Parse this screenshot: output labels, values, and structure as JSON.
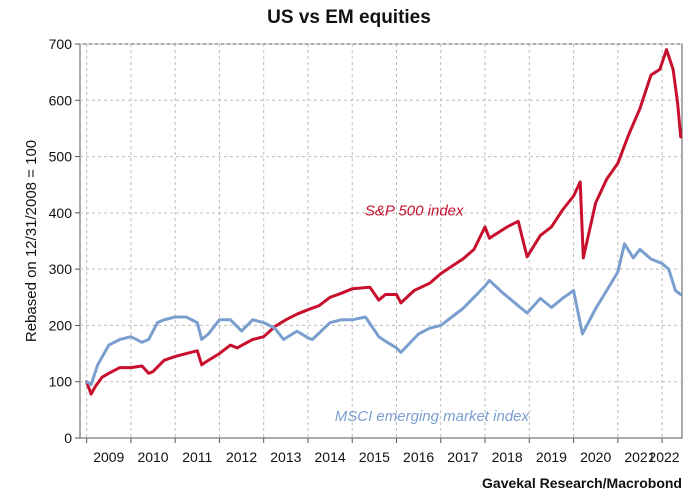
{
  "chart_data": {
    "type": "line",
    "title": "US vs EM equities",
    "ylabel": "Rebased on 12/31/2008 = 100",
    "xlabel": "",
    "source": "Gavekal Research/Macrobond",
    "ylim": [
      0,
      700
    ],
    "xlim": [
      2008.85,
      2022.45
    ],
    "yticks": [
      0,
      100,
      200,
      300,
      400,
      500,
      600,
      700
    ],
    "xtick_labels": [
      "2009",
      "2010",
      "2011",
      "2012",
      "2013",
      "2014",
      "2015",
      "2016",
      "2017",
      "2018",
      "2019",
      "2020",
      "2021",
      "2022"
    ],
    "grid": true,
    "series": [
      {
        "name": "S&P 500 index",
        "color": "#c8102e",
        "x": [
          2009.0,
          2009.1,
          2009.2,
          2009.35,
          2009.5,
          2009.75,
          2010.0,
          2010.25,
          2010.4,
          2010.5,
          2010.75,
          2011.0,
          2011.25,
          2011.5,
          2011.6,
          2011.75,
          2012.0,
          2012.25,
          2012.4,
          2012.75,
          2013.0,
          2013.25,
          2013.5,
          2013.75,
          2014.0,
          2014.25,
          2014.5,
          2014.75,
          2015.0,
          2015.4,
          2015.6,
          2015.75,
          2016.0,
          2016.1,
          2016.4,
          2016.75,
          2017.0,
          2017.25,
          2017.5,
          2017.75,
          2018.0,
          2018.1,
          2018.5,
          2018.75,
          2018.95,
          2019.25,
          2019.5,
          2019.75,
          2020.0,
          2020.15,
          2020.22,
          2020.5,
          2020.75,
          2021.0,
          2021.25,
          2021.5,
          2021.75,
          2021.95,
          2022.1,
          2022.25,
          2022.35,
          2022.42
        ],
        "values": [
          100,
          78,
          92,
          108,
          115,
          125,
          125,
          128,
          115,
          118,
          138,
          145,
          150,
          155,
          130,
          138,
          150,
          165,
          160,
          175,
          180,
          198,
          210,
          220,
          228,
          235,
          250,
          257,
          265,
          268,
          245,
          255,
          255,
          240,
          262,
          275,
          292,
          305,
          318,
          335,
          375,
          355,
          375,
          385,
          322,
          360,
          375,
          405,
          430,
          455,
          320,
          418,
          460,
          488,
          540,
          585,
          645,
          655,
          690,
          655,
          595,
          535
        ]
      },
      {
        "name": "MSCI emerging market index",
        "color": "#7a9fcf",
        "x": [
          2009.0,
          2009.1,
          2009.25,
          2009.5,
          2009.75,
          2010.0,
          2010.25,
          2010.4,
          2010.6,
          2010.75,
          2011.0,
          2011.25,
          2011.5,
          2011.6,
          2011.75,
          2012.0,
          2012.25,
          2012.5,
          2012.75,
          2013.0,
          2013.25,
          2013.45,
          2013.75,
          2014.0,
          2014.1,
          2014.5,
          2014.75,
          2015.0,
          2015.3,
          2015.6,
          2015.75,
          2016.0,
          2016.1,
          2016.5,
          2016.75,
          2017.0,
          2017.25,
          2017.5,
          2017.75,
          2018.0,
          2018.1,
          2018.4,
          2018.75,
          2018.95,
          2019.25,
          2019.5,
          2019.75,
          2020.0,
          2020.2,
          2020.5,
          2020.75,
          2021.0,
          2021.15,
          2021.35,
          2021.5,
          2021.75,
          2022.0,
          2022.15,
          2022.3,
          2022.42
        ],
        "values": [
          100,
          95,
          130,
          165,
          175,
          180,
          170,
          175,
          205,
          210,
          215,
          215,
          205,
          175,
          185,
          210,
          210,
          190,
          210,
          205,
          195,
          175,
          190,
          178,
          175,
          205,
          210,
          210,
          215,
          180,
          172,
          160,
          152,
          185,
          195,
          200,
          215,
          230,
          250,
          270,
          280,
          258,
          235,
          222,
          248,
          232,
          248,
          262,
          185,
          230,
          262,
          295,
          345,
          320,
          335,
          318,
          310,
          300,
          262,
          255
        ]
      }
    ],
    "annotations": [
      {
        "text": "S&P 500 index",
        "series": "S&P 500 index"
      },
      {
        "text": "MSCI emerging market index",
        "series": "MSCI emerging market index"
      }
    ]
  }
}
